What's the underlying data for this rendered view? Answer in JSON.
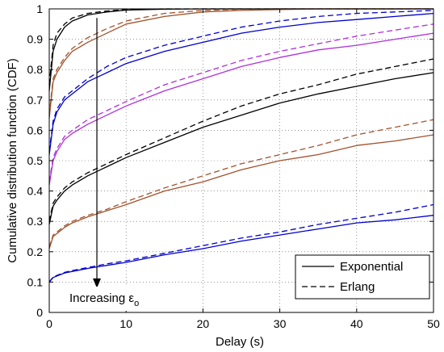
{
  "chart_data": {
    "type": "line",
    "xlabel": "Delay (s)",
    "ylabel": "Cumulative distribution function (CDF)",
    "xlim": [
      0,
      50
    ],
    "ylim": [
      0,
      1
    ],
    "xticks": [
      "0",
      "10",
      "20",
      "30",
      "40",
      "50"
    ],
    "yticks": [
      "0",
      "0.1",
      "0.2",
      "0.3",
      "0.4",
      "0.5",
      "0.6",
      "0.7",
      "0.8",
      "0.9",
      "1"
    ],
    "grid": true,
    "legend_position": "bottom-right",
    "legend": [
      {
        "label": "Exponential",
        "style": "solid"
      },
      {
        "label": "Erlang",
        "style": "dashed"
      }
    ],
    "annotation": {
      "text": "Increasing ε",
      "subscript": "o",
      "arrow_from": [
        6.2,
        0.97
      ],
      "arrow_to": [
        6.2,
        0.08
      ]
    },
    "x": [
      0,
      0.5,
      1,
      2,
      3,
      5,
      7.5,
      10,
      15,
      20,
      25,
      30,
      35,
      40,
      45,
      50
    ],
    "series": [
      {
        "color": "#000000",
        "style": "solid",
        "values": [
          0.73,
          0.86,
          0.9,
          0.94,
          0.96,
          0.98,
          0.99,
          0.996,
          0.999,
          1,
          1,
          1,
          1,
          1,
          1,
          1
        ]
      },
      {
        "color": "#000000",
        "style": "dashed",
        "values": [
          0.75,
          0.88,
          0.92,
          0.95,
          0.97,
          0.985,
          0.993,
          0.998,
          1,
          1,
          1,
          1,
          1,
          1,
          1,
          1
        ]
      },
      {
        "color": "#a0522d",
        "style": "solid",
        "values": [
          0.64,
          0.76,
          0.79,
          0.83,
          0.86,
          0.89,
          0.92,
          0.95,
          0.975,
          0.99,
          0.995,
          0.998,
          1,
          1,
          1,
          1
        ]
      },
      {
        "color": "#a0522d",
        "style": "dashed",
        "values": [
          0.65,
          0.77,
          0.8,
          0.84,
          0.87,
          0.905,
          0.935,
          0.96,
          0.985,
          0.995,
          0.999,
          1,
          1,
          1,
          1,
          1
        ]
      },
      {
        "color": "#0000cc",
        "style": "solid",
        "values": [
          0.52,
          0.62,
          0.66,
          0.7,
          0.72,
          0.76,
          0.79,
          0.82,
          0.86,
          0.89,
          0.92,
          0.94,
          0.955,
          0.965,
          0.975,
          0.985
        ]
      },
      {
        "color": "#0000cc",
        "style": "dashed",
        "values": [
          0.53,
          0.63,
          0.67,
          0.71,
          0.73,
          0.77,
          0.81,
          0.84,
          0.88,
          0.91,
          0.94,
          0.96,
          0.975,
          0.985,
          0.99,
          0.995
        ]
      },
      {
        "color": "#b030d8",
        "style": "solid",
        "values": [
          0.42,
          0.5,
          0.53,
          0.57,
          0.59,
          0.62,
          0.65,
          0.68,
          0.73,
          0.77,
          0.81,
          0.84,
          0.865,
          0.88,
          0.9,
          0.92
        ]
      },
      {
        "color": "#b030d8",
        "style": "dashed",
        "values": [
          0.43,
          0.51,
          0.54,
          0.58,
          0.6,
          0.635,
          0.665,
          0.695,
          0.75,
          0.79,
          0.83,
          0.86,
          0.885,
          0.91,
          0.93,
          0.95
        ]
      },
      {
        "color": "#000000",
        "style": "solid",
        "values": [
          0.29,
          0.35,
          0.37,
          0.4,
          0.42,
          0.45,
          0.48,
          0.51,
          0.56,
          0.61,
          0.65,
          0.69,
          0.72,
          0.745,
          0.77,
          0.79
        ]
      },
      {
        "color": "#000000",
        "style": "dashed",
        "values": [
          0.3,
          0.36,
          0.38,
          0.41,
          0.43,
          0.46,
          0.49,
          0.52,
          0.575,
          0.63,
          0.68,
          0.72,
          0.75,
          0.785,
          0.81,
          0.835
        ]
      },
      {
        "color": "#a0522d",
        "style": "solid",
        "values": [
          0.21,
          0.25,
          0.26,
          0.28,
          0.295,
          0.315,
          0.335,
          0.355,
          0.4,
          0.43,
          0.47,
          0.5,
          0.52,
          0.55,
          0.565,
          0.585
        ]
      },
      {
        "color": "#a0522d",
        "style": "dashed",
        "values": [
          0.215,
          0.255,
          0.265,
          0.285,
          0.3,
          0.32,
          0.34,
          0.365,
          0.41,
          0.45,
          0.49,
          0.52,
          0.55,
          0.585,
          0.61,
          0.635
        ]
      },
      {
        "color": "#0000cc",
        "style": "solid",
        "values": [
          0.1,
          0.115,
          0.12,
          0.13,
          0.135,
          0.145,
          0.155,
          0.165,
          0.19,
          0.21,
          0.235,
          0.255,
          0.275,
          0.295,
          0.305,
          0.32
        ]
      },
      {
        "color": "#0000cc",
        "style": "dashed",
        "values": [
          0.1,
          0.117,
          0.122,
          0.132,
          0.138,
          0.148,
          0.16,
          0.17,
          0.195,
          0.22,
          0.245,
          0.265,
          0.29,
          0.31,
          0.33,
          0.355
        ]
      }
    ]
  }
}
